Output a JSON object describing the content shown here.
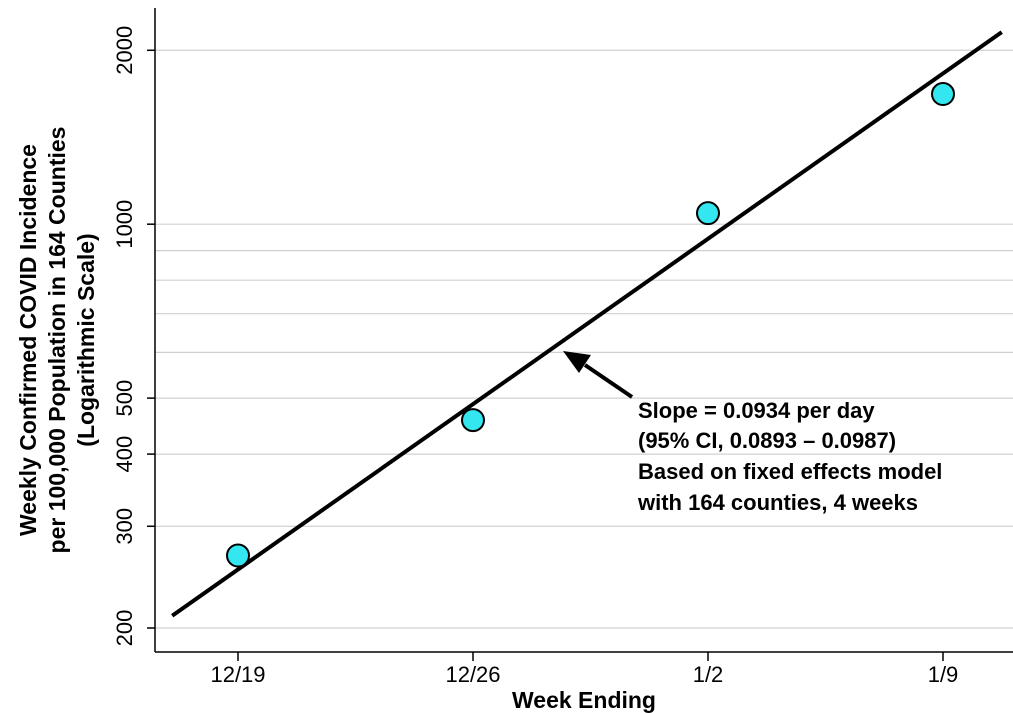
{
  "chart_data": {
    "type": "scatter",
    "xlabel": "Week Ending",
    "ylabel_lines": [
      "Weekly Confirmed COVID Incidence",
      "per 100,000 Population in 164 Counties",
      "(Logarithmic Scale)"
    ],
    "y_scale": "log",
    "ylim": [
      190,
      2400
    ],
    "y_ticks": [
      200,
      300,
      400,
      500,
      1000,
      2000
    ],
    "y_gridlines": [
      200,
      300,
      400,
      500,
      600,
      700,
      800,
      900,
      1000,
      2000
    ],
    "grid": "horizontal",
    "x_categories": [
      "12/19",
      "12/26",
      "1/2",
      "1/9"
    ],
    "points": [
      {
        "x": "12/19",
        "y": 267
      },
      {
        "x": "12/26",
        "y": 458
      },
      {
        "x": "1/2",
        "y": 1045
      },
      {
        "x": "1/9",
        "y": 1680
      }
    ],
    "fit_line": {
      "x_start": -0.28,
      "y_start": 210,
      "x_end": 3.25,
      "y_end": 2150
    },
    "annotation": {
      "lines": [
        "Slope = 0.0934 per day",
        "(95% CI, 0.0893 – 0.0987)",
        "Based on fixed effects model",
        "with 164 counties, 4 weeks"
      ]
    },
    "colors": {
      "marker_fill": "#33E6F0",
      "marker_stroke": "#000000",
      "line": "#000000",
      "grid": "#D0D0D0"
    }
  }
}
